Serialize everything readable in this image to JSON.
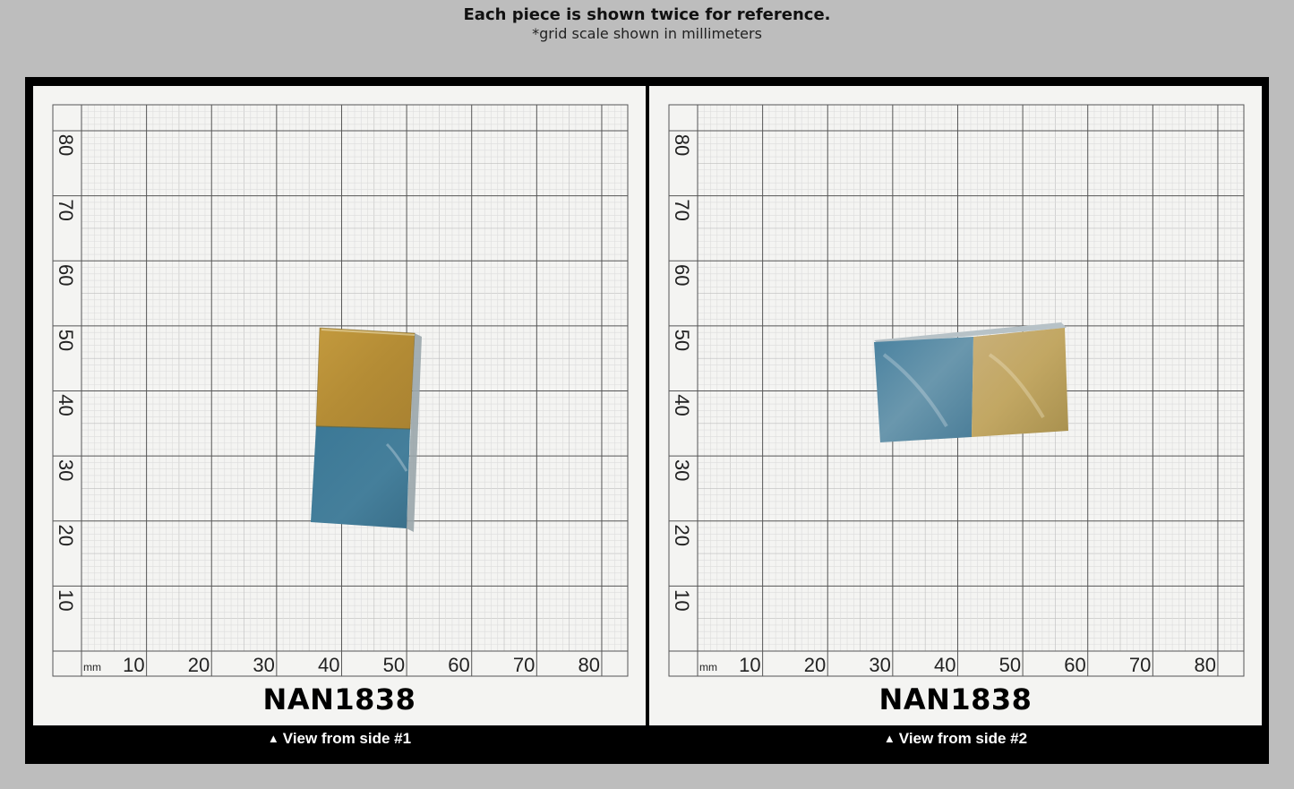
{
  "header": {
    "title": "Each piece is shown twice for reference.",
    "subtitle": "*grid scale shown in millimeters"
  },
  "grid": {
    "unit_label": "mm",
    "x_ticks": [
      "10",
      "20",
      "30",
      "40",
      "50",
      "60",
      "70",
      "80"
    ],
    "y_ticks": [
      "10",
      "20",
      "30",
      "40",
      "50",
      "60",
      "70",
      "80"
    ]
  },
  "views": [
    {
      "piece_id": "NAN1838",
      "caption_arrow": "▲",
      "caption": "View from side #1",
      "colors": {
        "top": "#b9923a",
        "bottom": "#3f7a97"
      }
    },
    {
      "piece_id": "NAN1838",
      "caption_arrow": "▲",
      "caption": "View from side #2",
      "colors": {
        "left": "#4f84a0",
        "right": "#c2a763"
      }
    }
  ]
}
